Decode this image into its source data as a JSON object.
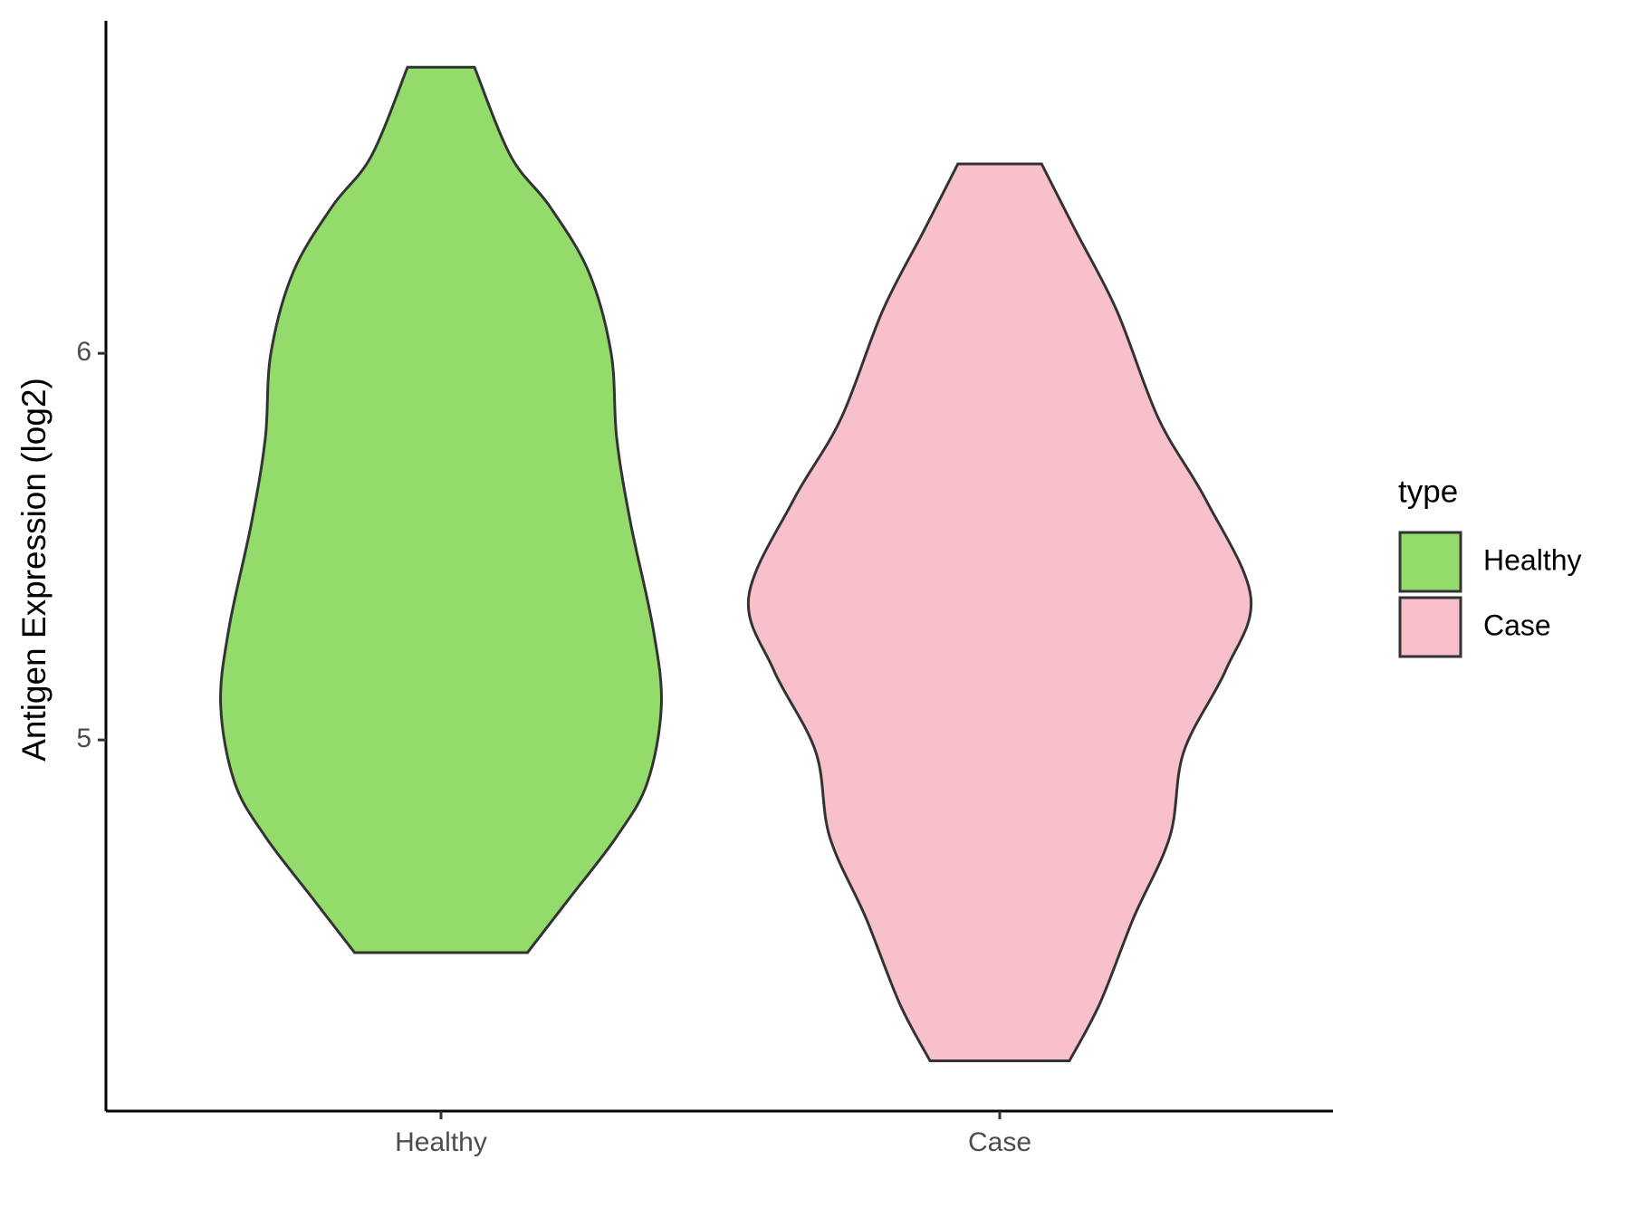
{
  "chart_data": {
    "type": "violin",
    "ylabel": "Antigen Expression (log2)",
    "categories": [
      "Healthy",
      "Case"
    ],
    "legend_title": "type",
    "legend": "right",
    "ylim": [
      4.04,
      6.86
    ],
    "yticks": [
      5,
      6
    ],
    "series": [
      {
        "name": "Healthy",
        "color": "#93db6b",
        "y": [
          6.74,
          6.51,
          6.38,
          6.21,
          6.0,
          5.78,
          5.56,
          5.29,
          5.09,
          4.89,
          4.75,
          4.59,
          4.45
        ],
        "density": [
          0.12,
          0.25,
          0.39,
          0.53,
          0.61,
          0.63,
          0.68,
          0.76,
          0.79,
          0.74,
          0.63,
          0.46,
          0.31
        ]
      },
      {
        "name": "Case",
        "color": "#f8c0cb",
        "y": [
          6.49,
          6.32,
          6.11,
          5.83,
          5.62,
          5.37,
          5.18,
          4.97,
          4.75,
          4.54,
          4.32,
          4.17
        ],
        "density": [
          0.15,
          0.27,
          0.42,
          0.57,
          0.74,
          0.9,
          0.81,
          0.66,
          0.61,
          0.48,
          0.36,
          0.25
        ]
      }
    ]
  }
}
